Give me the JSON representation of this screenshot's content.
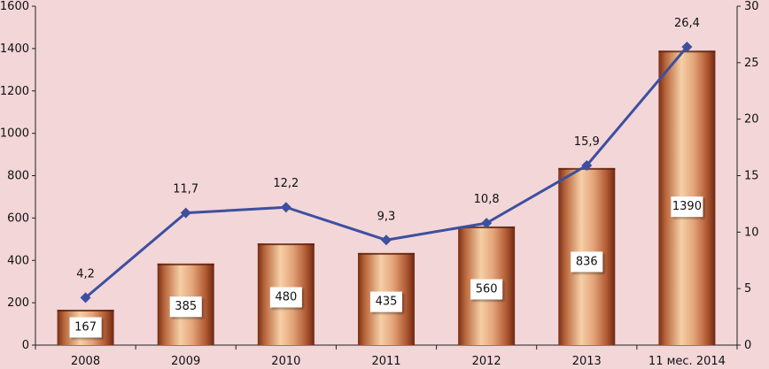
{
  "chart_data": {
    "type": "bar",
    "categories": [
      "2008",
      "2009",
      "2010",
      "2011",
      "2012",
      "2013",
      "11 мес. 2014"
    ],
    "series": [
      {
        "values": [
          167,
          385,
          480,
          435,
          560,
          836,
          1390
        ],
        "axis": "left",
        "type": "bar"
      },
      {
        "values": [
          4.2,
          11.7,
          12.2,
          9.3,
          10.8,
          15.9,
          26.4
        ],
        "axis": "right",
        "type": "line"
      }
    ],
    "bar_labels": [
      "167",
      "385",
      "480",
      "435",
      "560",
      "836",
      "1390"
    ],
    "line_labels": [
      "4,2",
      "11,7",
      "12,2",
      "9,3",
      "10,8",
      "15,9",
      "26,4"
    ],
    "ylim": [
      0,
      1600
    ],
    "y2lim": [
      0,
      30
    ],
    "y_ticks": [
      "0",
      "200",
      "400",
      "600",
      "800",
      "1000",
      "1200",
      "1400",
      "1600"
    ],
    "y2_ticks": [
      "0",
      "5",
      "10",
      "15",
      "20",
      "25",
      "30"
    ],
    "grid": false,
    "legend": "none",
    "colors": {
      "bar_light": "#f6cfa6",
      "bar_mid": "#cf7f4f",
      "bar_dark": "#7a2f16",
      "line": "#3d4fa0",
      "background": "#f2d6d8"
    }
  }
}
